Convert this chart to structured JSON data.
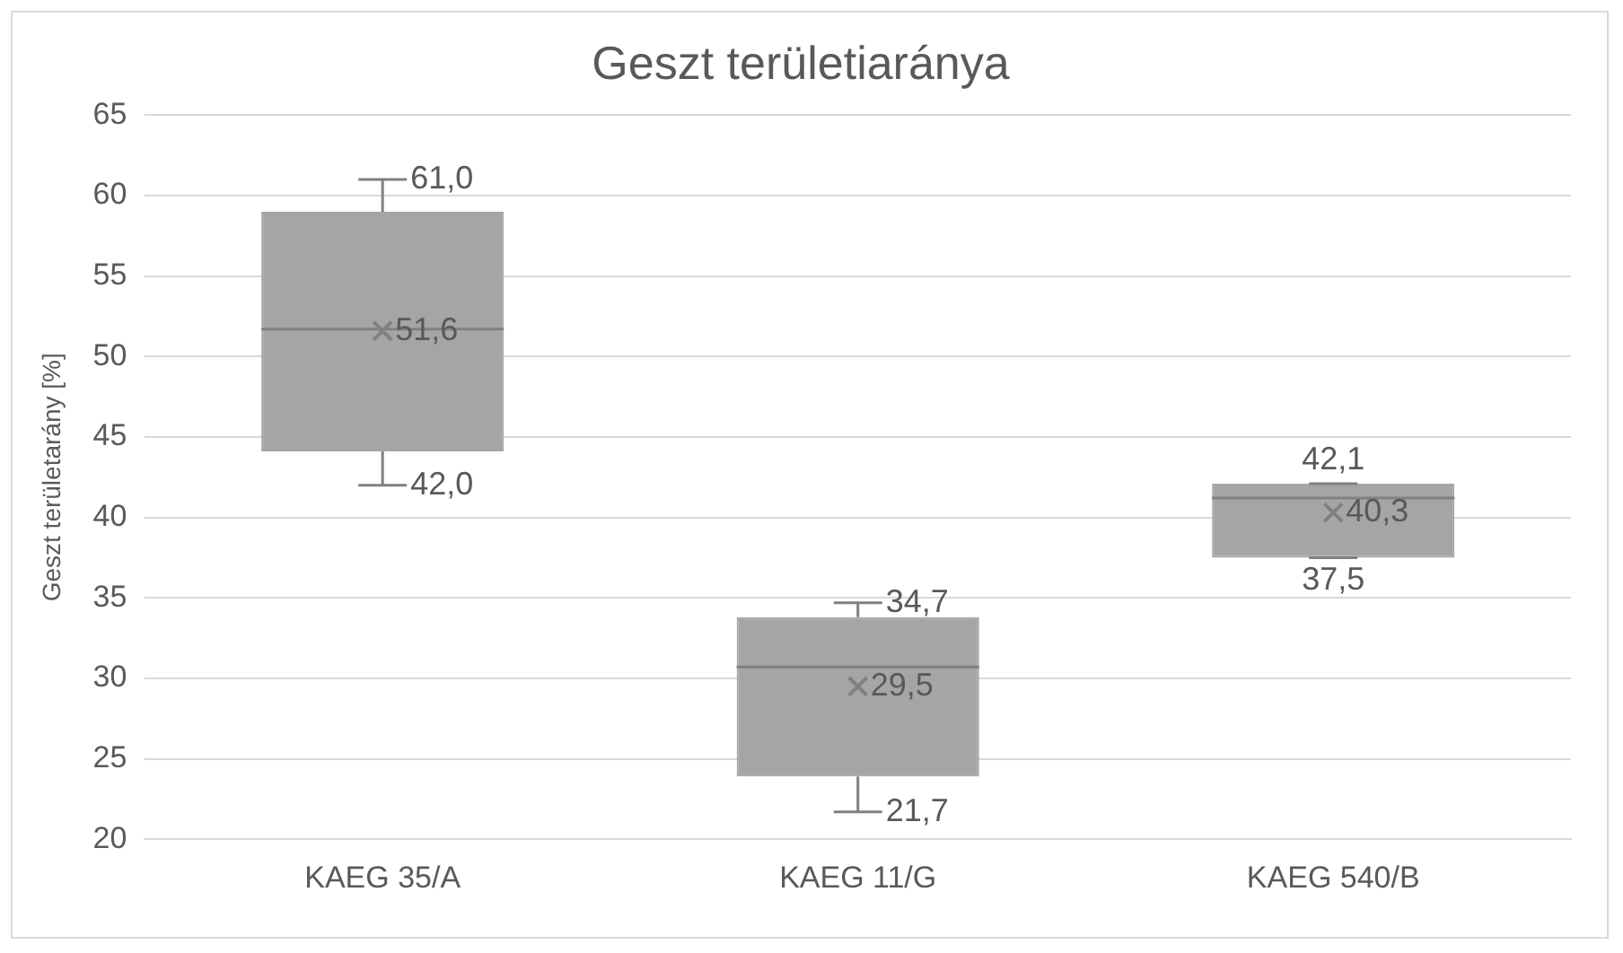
{
  "chart_data": {
    "type": "box",
    "title": "Geszt területiaránya",
    "ylabel": "Geszt területarány [%]",
    "categories": [
      "KAEG 35/A",
      "KAEG 11/G",
      "KAEG 540/B"
    ],
    "boxes": [
      {
        "low": 42.0,
        "q1": 44.1,
        "median": 51.7,
        "q3": 59.0,
        "high": 61.0
      },
      {
        "low": 21.7,
        "q1": 23.9,
        "median": 30.7,
        "q3": 33.8,
        "high": 34.7
      },
      {
        "low": 37.5,
        "q1": 37.5,
        "median": 41.2,
        "q3": 42.1,
        "high": 42.1
      }
    ],
    "color": "#a5a5a5",
    "series": [
      {
        "type": "scatter",
        "marker": "cross",
        "color": "#808080",
        "x": [
          "KAEG 35/A",
          "KAEG 11/G",
          "KAEG 540/B"
        ],
        "values": [
          51.6,
          29.5,
          40.3
        ],
        "value_labels": [
          "51,6",
          "29,5",
          "40,3"
        ]
      }
    ],
    "ylim": [
      20,
      65
    ],
    "yticks": [
      20,
      25,
      30,
      35,
      40,
      45,
      50,
      55,
      60,
      65
    ],
    "grid": "y",
    "legend": false,
    "annotations": [
      {
        "text": "61,0",
        "x": "KAEG 35/A",
        "y": 61.0
      },
      {
        "text": "42,0",
        "x": "KAEG 35/A",
        "y": 42.0
      },
      {
        "text": "34,7",
        "x": "KAEG 11/G",
        "y": 34.7
      },
      {
        "text": "21,7",
        "x": "KAEG 11/G",
        "y": 21.7
      },
      {
        "text": "42,1",
        "x": "KAEG 540/B",
        "y": 42.1
      },
      {
        "text": "37,5",
        "x": "KAEG 540/B",
        "y": 37.5
      }
    ]
  }
}
